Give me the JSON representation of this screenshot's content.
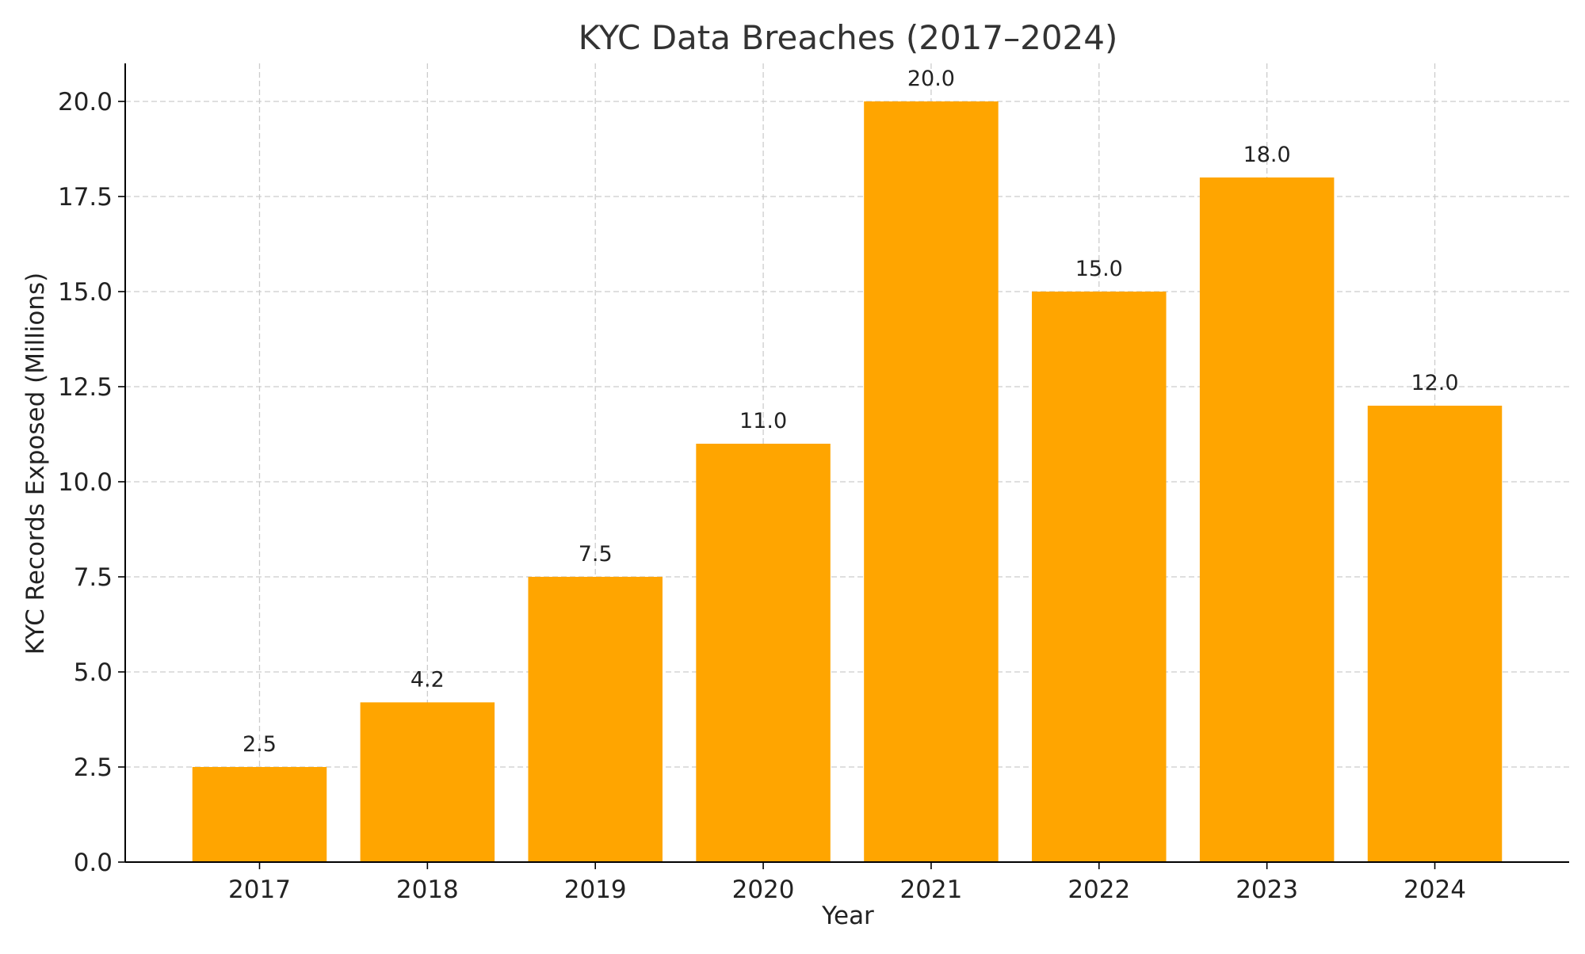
{
  "chart_data": {
    "type": "bar",
    "title": "KYC Data Breaches (2017–2024)",
    "xlabel": "Year",
    "ylabel": "KYC Records Exposed (Millions)",
    "categories": [
      "2017",
      "2018",
      "2019",
      "2020",
      "2021",
      "2022",
      "2023",
      "2024"
    ],
    "values": [
      2.5,
      4.2,
      7.5,
      11.0,
      20.0,
      15.0,
      18.0,
      12.0
    ],
    "data_labels": [
      "2.5",
      "4.2",
      "7.5",
      "11.0",
      "20.0",
      "15.0",
      "18.0",
      "12.0"
    ],
    "ylim": [
      0,
      21
    ],
    "yticks": [
      0,
      2.5,
      5,
      7.5,
      10,
      12.5,
      15,
      17.5,
      20
    ],
    "ytick_labels": [
      "0.0",
      "2.5",
      "5.0",
      "7.5",
      "10.0",
      "12.5",
      "15.0",
      "17.5",
      "20.0"
    ],
    "grid": true,
    "legend": "none",
    "colors": {
      "bar": "#FFA500",
      "grid": "#cccccc",
      "axis": "#000000",
      "text": "#222222",
      "title": "#333333"
    }
  }
}
